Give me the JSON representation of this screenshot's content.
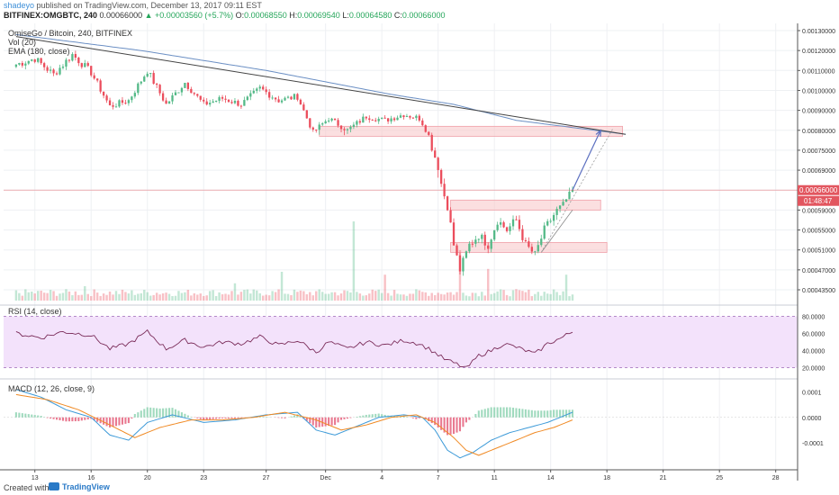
{
  "header": {
    "author": "shadeyo",
    "published_text": "published on TradingView.com, December 13, 2017 09:11 EST",
    "symbol": "BITFINEX:OMGBTC, 240",
    "last": "0.00066000",
    "change": "+0.00003560 (+5.7%)",
    "o_label": "O:",
    "o_value": "0.00068550",
    "h_label": "H:",
    "h_value": "0.00069540",
    "l_label": "L:",
    "l_value": "0.00064580",
    "c_label": "C:",
    "c_value": "0.00066000"
  },
  "legend": {
    "title": "OmiseGo / Bitcoin, 240, BITFINEX",
    "vol": "Vol (20)",
    "ema": "EMA (180, close)",
    "rsi": "RSI (14, close)",
    "macd": "MACD (12, 26, close, 9)"
  },
  "price_badge": "0.00066000",
  "time_badge": "01:48:47",
  "footer": {
    "created_with": "Created with",
    "brand": "TradingView"
  },
  "colors": {
    "up": "#53b987",
    "down": "#eb4d5c",
    "ema": "#6b8fc4",
    "trend": "#444444",
    "zone": "#f8c9cc",
    "rsi_bg": "#f3e2fb",
    "macd": "#3d9ad8",
    "signal": "#f08a24",
    "price_line": "#e2565f",
    "arrow": "#5b6fc0"
  },
  "chart_data": {
    "type": "candlestick",
    "title": "OmiseGo / Bitcoin, 240, BITFINEX",
    "x_tick_labels": [
      "13",
      "16",
      "20",
      "23",
      "27",
      "Dec",
      "4",
      "7",
      "11",
      "14",
      "18",
      "21",
      "25",
      "28"
    ],
    "x_tick_index": [
      6,
      24,
      42,
      60,
      80,
      99,
      117,
      135,
      153,
      171,
      189,
      207,
      225,
      243
    ],
    "y_tick_labels": [
      "0.00130000",
      "0.00120000",
      "0.00110000",
      "0.00100000",
      "0.00090000",
      "0.00080000",
      "0.00075000",
      "0.00069000",
      "0.00066000",
      "0.00059000",
      "0.00055000",
      "0.00051000",
      "0.00047000",
      "0.00043500"
    ],
    "y_tick_values": [
      0.0013,
      0.0012,
      0.0011,
      0.001,
      0.0009,
      0.0008,
      0.00075,
      0.00069,
      0.00066,
      0.00059,
      0.00055,
      0.00051,
      0.00047,
      0.000435
    ],
    "x_index_range": [
      -4,
      250
    ],
    "close_anchors": [
      [
        0,
        0.00113
      ],
      [
        6,
        0.00116
      ],
      [
        12,
        0.00108
      ],
      [
        18,
        0.00118
      ],
      [
        24,
        0.00109
      ],
      [
        30,
        0.00092
      ],
      [
        36,
        0.00095
      ],
      [
        42,
        0.0011
      ],
      [
        48,
        0.00093
      ],
      [
        54,
        0.00104
      ],
      [
        60,
        0.00093
      ],
      [
        66,
        0.00096
      ],
      [
        72,
        0.00093
      ],
      [
        78,
        0.00101
      ],
      [
        84,
        0.00095
      ],
      [
        90,
        0.00097
      ],
      [
        95,
        0.00079
      ],
      [
        100,
        0.00086
      ],
      [
        106,
        0.0008
      ],
      [
        112,
        0.00087
      ],
      [
        118,
        0.00085
      ],
      [
        124,
        0.00088
      ],
      [
        129,
        0.00086
      ],
      [
        133,
        0.00076
      ],
      [
        137,
        0.00064
      ],
      [
        140,
        0.00052
      ],
      [
        142,
        0.00047
      ],
      [
        145,
        0.00052
      ],
      [
        148,
        0.00054
      ],
      [
        151,
        0.00052
      ],
      [
        154,
        0.00057
      ],
      [
        157,
        0.00055
      ],
      [
        160,
        0.00057
      ],
      [
        163,
        0.00052
      ],
      [
        166,
        0.0005
      ],
      [
        169,
        0.00055
      ],
      [
        172,
        0.00058
      ],
      [
        175,
        0.00061
      ],
      [
        178,
        0.00066
      ]
    ],
    "last_close": 0.00066,
    "ema_anchors": [
      [
        0,
        0.00128
      ],
      [
        40,
        0.0012
      ],
      [
        80,
        0.0011
      ],
      [
        120,
        0.00098
      ],
      [
        140,
        0.00093
      ],
      [
        160,
        0.00085
      ],
      [
        185,
        0.0008
      ],
      [
        195,
        0.00079
      ]
    ],
    "trendline": [
      [
        0,
        0.00127
      ],
      [
        195,
        0.00079
      ]
    ],
    "zones": [
      {
        "x": [
          97,
          194
        ],
        "y": [
          0.000785,
          0.00082
        ]
      },
      {
        "x": [
          139,
          187
        ],
        "y": [
          0.00059,
          0.000625
        ]
      },
      {
        "x": [
          139,
          189
        ],
        "y": [
          0.000505,
          0.000525
        ]
      }
    ],
    "projection_arrow": [
      [
        178,
        0.00066
      ],
      [
        187,
        0.0008
      ]
    ],
    "projection_dashed": [
      [
        168,
        0.000505
      ],
      [
        191,
        0.00081
      ]
    ],
    "projection_rising": [
      [
        168,
        0.000505
      ],
      [
        178,
        0.00059
      ]
    ],
    "volume_spikes": [
      [
        22,
        0.1
      ],
      [
        70,
        0.12
      ],
      [
        85,
        0.2
      ],
      [
        108,
        0.55
      ],
      [
        118,
        0.18
      ],
      [
        142,
        0.35
      ],
      [
        151,
        0.22
      ],
      [
        176,
        0.18
      ]
    ],
    "rsi": {
      "yticks": [
        80,
        60,
        40,
        20
      ],
      "ytick_labels": [
        "80.0000",
        "60.0000",
        "40.0000",
        "20.0000"
      ],
      "band": [
        30,
        70
      ],
      "anchors": [
        [
          0,
          60
        ],
        [
          8,
          55
        ],
        [
          15,
          62
        ],
        [
          24,
          58
        ],
        [
          30,
          42
        ],
        [
          36,
          48
        ],
        [
          42,
          62
        ],
        [
          48,
          42
        ],
        [
          54,
          52
        ],
        [
          60,
          44
        ],
        [
          66,
          50
        ],
        [
          72,
          48
        ],
        [
          78,
          56
        ],
        [
          84,
          46
        ],
        [
          90,
          52
        ],
        [
          96,
          38
        ],
        [
          100,
          50
        ],
        [
          106,
          42
        ],
        [
          112,
          50
        ],
        [
          118,
          46
        ],
        [
          124,
          52
        ],
        [
          129,
          48
        ],
        [
          133,
          40
        ],
        [
          137,
          30
        ],
        [
          141,
          24
        ],
        [
          144,
          19
        ],
        [
          148,
          34
        ],
        [
          152,
          40
        ],
        [
          156,
          48
        ],
        [
          160,
          44
        ],
        [
          163,
          40
        ],
        [
          166,
          36
        ],
        [
          170,
          48
        ],
        [
          174,
          54
        ],
        [
          178,
          62
        ]
      ]
    },
    "macd": {
      "yticks": [
        0.0001,
        0,
        -0.0001
      ],
      "ytick_labels": [
        "0.0001",
        "0.0000",
        "-0.0001"
      ],
      "macd_anchors": [
        [
          0,
          0.00011
        ],
        [
          8,
          8e-05
        ],
        [
          16,
          3e-05
        ],
        [
          24,
          0.0
        ],
        [
          30,
          -7e-05
        ],
        [
          36,
          -9e-05
        ],
        [
          42,
          -2e-05
        ],
        [
          50,
          1e-05
        ],
        [
          60,
          -2e-05
        ],
        [
          70,
          -1e-05
        ],
        [
          80,
          1e-05
        ],
        [
          90,
          2e-05
        ],
        [
          96,
          -5e-05
        ],
        [
          102,
          -7e-05
        ],
        [
          108,
          -4e-05
        ],
        [
          116,
          0.0
        ],
        [
          124,
          1e-05
        ],
        [
          130,
          0.0
        ],
        [
          134,
          -5e-05
        ],
        [
          138,
          -0.00013
        ],
        [
          142,
          -0.00016
        ],
        [
          146,
          -0.00014
        ],
        [
          152,
          -9e-05
        ],
        [
          158,
          -6e-05
        ],
        [
          164,
          -4e-05
        ],
        [
          170,
          -2e-05
        ],
        [
          178,
          2e-05
        ]
      ],
      "signal_anchors": [
        [
          0,
          9e-05
        ],
        [
          10,
          7e-05
        ],
        [
          20,
          3e-05
        ],
        [
          30,
          -3e-05
        ],
        [
          38,
          -8e-05
        ],
        [
          46,
          -4e-05
        ],
        [
          56,
          -1e-05
        ],
        [
          66,
          -1e-05
        ],
        [
          76,
          0.0
        ],
        [
          86,
          2e-05
        ],
        [
          96,
          -1e-05
        ],
        [
          104,
          -5e-05
        ],
        [
          112,
          -3e-05
        ],
        [
          120,
          0.0
        ],
        [
          128,
          1e-05
        ],
        [
          134,
          -2e-05
        ],
        [
          140,
          -8e-05
        ],
        [
          144,
          -0.00013
        ],
        [
          148,
          -0.00015
        ],
        [
          154,
          -0.00012
        ],
        [
          160,
          -9e-05
        ],
        [
          166,
          -6e-05
        ],
        [
          172,
          -4e-05
        ],
        [
          178,
          -1e-05
        ]
      ]
    }
  }
}
